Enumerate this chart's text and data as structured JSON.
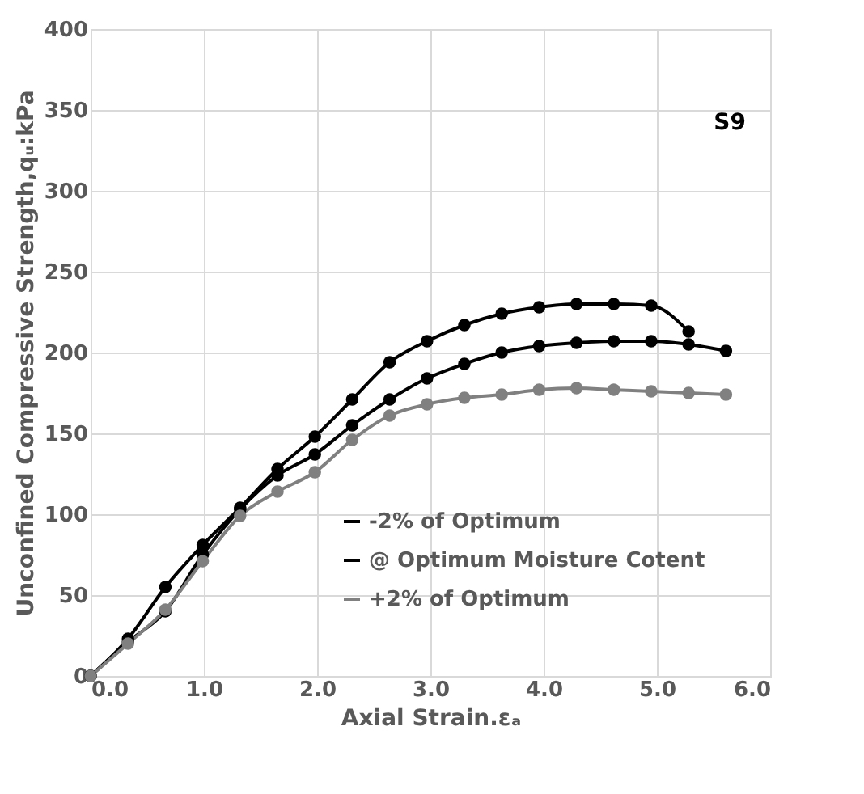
{
  "chart_data": {
    "type": "line",
    "xlabel": "Axial Strain.εₐ",
    "ylabel": "Unconfined Compressive Strength,qᵤ:kPa",
    "annotations": [
      "S9"
    ],
    "x": [
      0,
      0.33,
      0.66,
      0.99,
      1.32,
      1.65,
      1.98,
      2.31,
      2.64,
      2.97,
      3.3,
      3.63,
      3.96,
      4.29,
      4.62,
      4.95,
      5.28,
      5.61
    ],
    "series": [
      {
        "name": "-2% of Optimum",
        "color": "#000000",
        "values": [
          0,
          23,
          55,
          81,
          104,
          128,
          148,
          171,
          194,
          207,
          217,
          224,
          228,
          230,
          230,
          229,
          213,
          null
        ]
      },
      {
        "name": "@ Optimum Moisture Cotent",
        "color": "#000000",
        "values": [
          0,
          21,
          40,
          75,
          103,
          124,
          137,
          155,
          171,
          184,
          193,
          200,
          204,
          206,
          207,
          207,
          205,
          201
        ]
      },
      {
        "name": "+2% of Optimum",
        "color": "#808080",
        "values": [
          0,
          20,
          41,
          71,
          99,
          114,
          126,
          146,
          161,
          168,
          172,
          174,
          177,
          178,
          177,
          176,
          175,
          174
        ]
      }
    ],
    "xlim": [
      0,
      6
    ],
    "xticks": [
      {
        "value": 0,
        "label": "0.0"
      },
      {
        "value": 1,
        "label": "1.0"
      },
      {
        "value": 2,
        "label": "2.0"
      },
      {
        "value": 3,
        "label": "3.0"
      },
      {
        "value": 4,
        "label": "4.0"
      },
      {
        "value": 5,
        "label": "5.0"
      },
      {
        "value": 6,
        "label": "6.0"
      }
    ],
    "ylim": [
      0,
      400
    ],
    "yticks": [
      0,
      50,
      100,
      150,
      200,
      250,
      300,
      350,
      400
    ],
    "grid": true,
    "legend": "bottom right",
    "marker": "circle",
    "line_style": "solid"
  }
}
